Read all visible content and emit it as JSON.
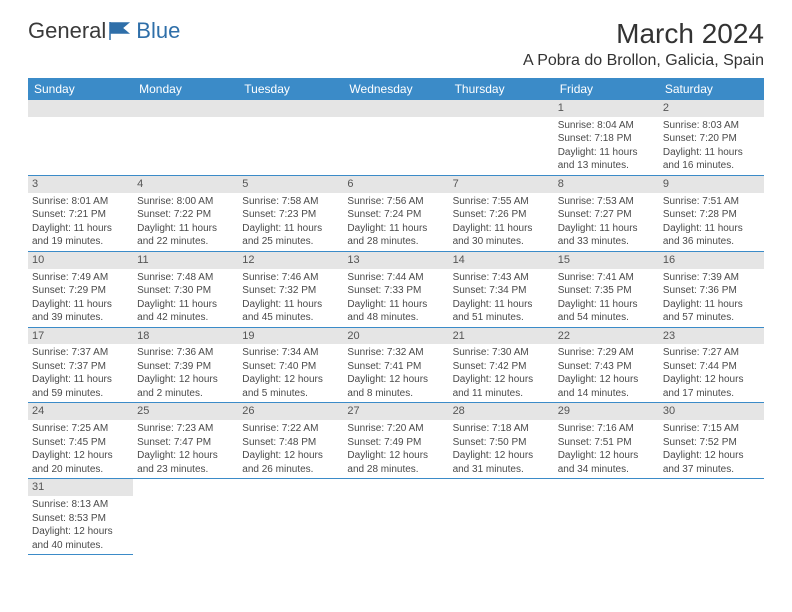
{
  "logo": {
    "text1": "General",
    "text2": "Blue",
    "icon_color": "#2f6fa9"
  },
  "title": "March 2024",
  "location": "A Pobra do Brollon, Galicia, Spain",
  "colors": {
    "header_bg": "#3b8bc8",
    "header_text": "#ffffff",
    "daynum_bg": "#e5e5e5",
    "border": "#3b8bc8",
    "text": "#4a4a4a"
  },
  "day_headers": [
    "Sunday",
    "Monday",
    "Tuesday",
    "Wednesday",
    "Thursday",
    "Friday",
    "Saturday"
  ],
  "weeks": [
    [
      null,
      null,
      null,
      null,
      null,
      {
        "n": "1",
        "sr": "8:04 AM",
        "ss": "7:18 PM",
        "dl": "11 hours and 13 minutes."
      },
      {
        "n": "2",
        "sr": "8:03 AM",
        "ss": "7:20 PM",
        "dl": "11 hours and 16 minutes."
      }
    ],
    [
      {
        "n": "3",
        "sr": "8:01 AM",
        "ss": "7:21 PM",
        "dl": "11 hours and 19 minutes."
      },
      {
        "n": "4",
        "sr": "8:00 AM",
        "ss": "7:22 PM",
        "dl": "11 hours and 22 minutes."
      },
      {
        "n": "5",
        "sr": "7:58 AM",
        "ss": "7:23 PM",
        "dl": "11 hours and 25 minutes."
      },
      {
        "n": "6",
        "sr": "7:56 AM",
        "ss": "7:24 PM",
        "dl": "11 hours and 28 minutes."
      },
      {
        "n": "7",
        "sr": "7:55 AM",
        "ss": "7:26 PM",
        "dl": "11 hours and 30 minutes."
      },
      {
        "n": "8",
        "sr": "7:53 AM",
        "ss": "7:27 PM",
        "dl": "11 hours and 33 minutes."
      },
      {
        "n": "9",
        "sr": "7:51 AM",
        "ss": "7:28 PM",
        "dl": "11 hours and 36 minutes."
      }
    ],
    [
      {
        "n": "10",
        "sr": "7:49 AM",
        "ss": "7:29 PM",
        "dl": "11 hours and 39 minutes."
      },
      {
        "n": "11",
        "sr": "7:48 AM",
        "ss": "7:30 PM",
        "dl": "11 hours and 42 minutes."
      },
      {
        "n": "12",
        "sr": "7:46 AM",
        "ss": "7:32 PM",
        "dl": "11 hours and 45 minutes."
      },
      {
        "n": "13",
        "sr": "7:44 AM",
        "ss": "7:33 PM",
        "dl": "11 hours and 48 minutes."
      },
      {
        "n": "14",
        "sr": "7:43 AM",
        "ss": "7:34 PM",
        "dl": "11 hours and 51 minutes."
      },
      {
        "n": "15",
        "sr": "7:41 AM",
        "ss": "7:35 PM",
        "dl": "11 hours and 54 minutes."
      },
      {
        "n": "16",
        "sr": "7:39 AM",
        "ss": "7:36 PM",
        "dl": "11 hours and 57 minutes."
      }
    ],
    [
      {
        "n": "17",
        "sr": "7:37 AM",
        "ss": "7:37 PM",
        "dl": "11 hours and 59 minutes."
      },
      {
        "n": "18",
        "sr": "7:36 AM",
        "ss": "7:39 PM",
        "dl": "12 hours and 2 minutes."
      },
      {
        "n": "19",
        "sr": "7:34 AM",
        "ss": "7:40 PM",
        "dl": "12 hours and 5 minutes."
      },
      {
        "n": "20",
        "sr": "7:32 AM",
        "ss": "7:41 PM",
        "dl": "12 hours and 8 minutes."
      },
      {
        "n": "21",
        "sr": "7:30 AM",
        "ss": "7:42 PM",
        "dl": "12 hours and 11 minutes."
      },
      {
        "n": "22",
        "sr": "7:29 AM",
        "ss": "7:43 PM",
        "dl": "12 hours and 14 minutes."
      },
      {
        "n": "23",
        "sr": "7:27 AM",
        "ss": "7:44 PM",
        "dl": "12 hours and 17 minutes."
      }
    ],
    [
      {
        "n": "24",
        "sr": "7:25 AM",
        "ss": "7:45 PM",
        "dl": "12 hours and 20 minutes."
      },
      {
        "n": "25",
        "sr": "7:23 AM",
        "ss": "7:47 PM",
        "dl": "12 hours and 23 minutes."
      },
      {
        "n": "26",
        "sr": "7:22 AM",
        "ss": "7:48 PM",
        "dl": "12 hours and 26 minutes."
      },
      {
        "n": "27",
        "sr": "7:20 AM",
        "ss": "7:49 PM",
        "dl": "12 hours and 28 minutes."
      },
      {
        "n": "28",
        "sr": "7:18 AM",
        "ss": "7:50 PM",
        "dl": "12 hours and 31 minutes."
      },
      {
        "n": "29",
        "sr": "7:16 AM",
        "ss": "7:51 PM",
        "dl": "12 hours and 34 minutes."
      },
      {
        "n": "30",
        "sr": "7:15 AM",
        "ss": "7:52 PM",
        "dl": "12 hours and 37 minutes."
      }
    ],
    [
      {
        "n": "31",
        "sr": "8:13 AM",
        "ss": "8:53 PM",
        "dl": "12 hours and 40 minutes."
      },
      null,
      null,
      null,
      null,
      null,
      null
    ]
  ],
  "labels": {
    "sunrise": "Sunrise:",
    "sunset": "Sunset:",
    "daylight": "Daylight:"
  }
}
